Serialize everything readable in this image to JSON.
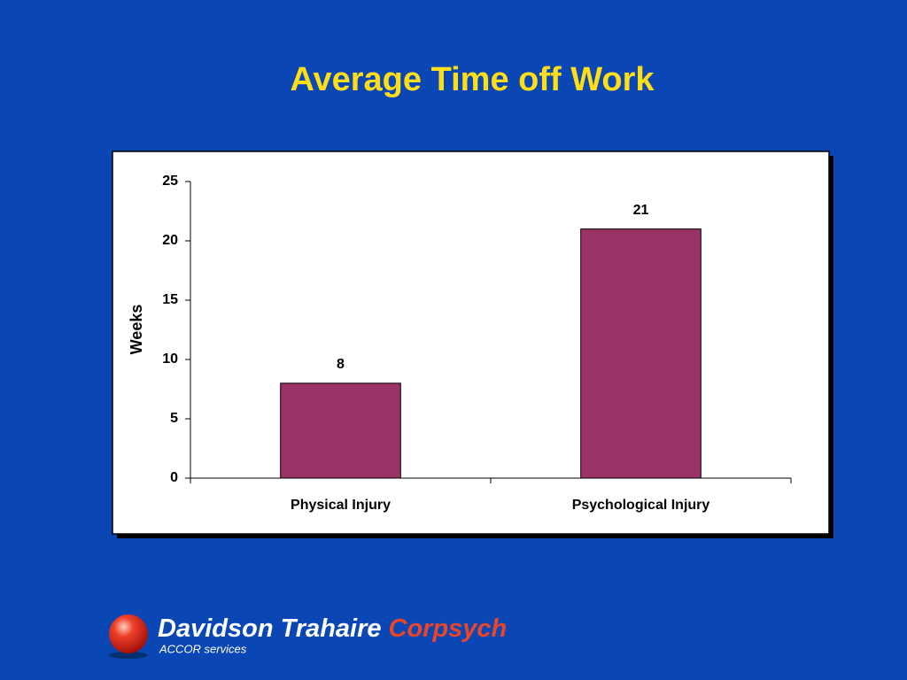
{
  "chart_data": {
    "type": "bar",
    "title": "Average Time off Work",
    "y_label": "Weeks",
    "categories": [
      "Physical Injury",
      "Psychological Injury"
    ],
    "values": [
      8,
      21
    ],
    "color": "#993366",
    "ylim": [
      0,
      25
    ],
    "yticks": [
      0,
      5,
      10,
      15,
      20,
      25
    ],
    "grid": false
  },
  "logo": {
    "name": "Davidson Trahaire",
    "accent": "Corpsych",
    "tagline": "ACCOR services"
  }
}
